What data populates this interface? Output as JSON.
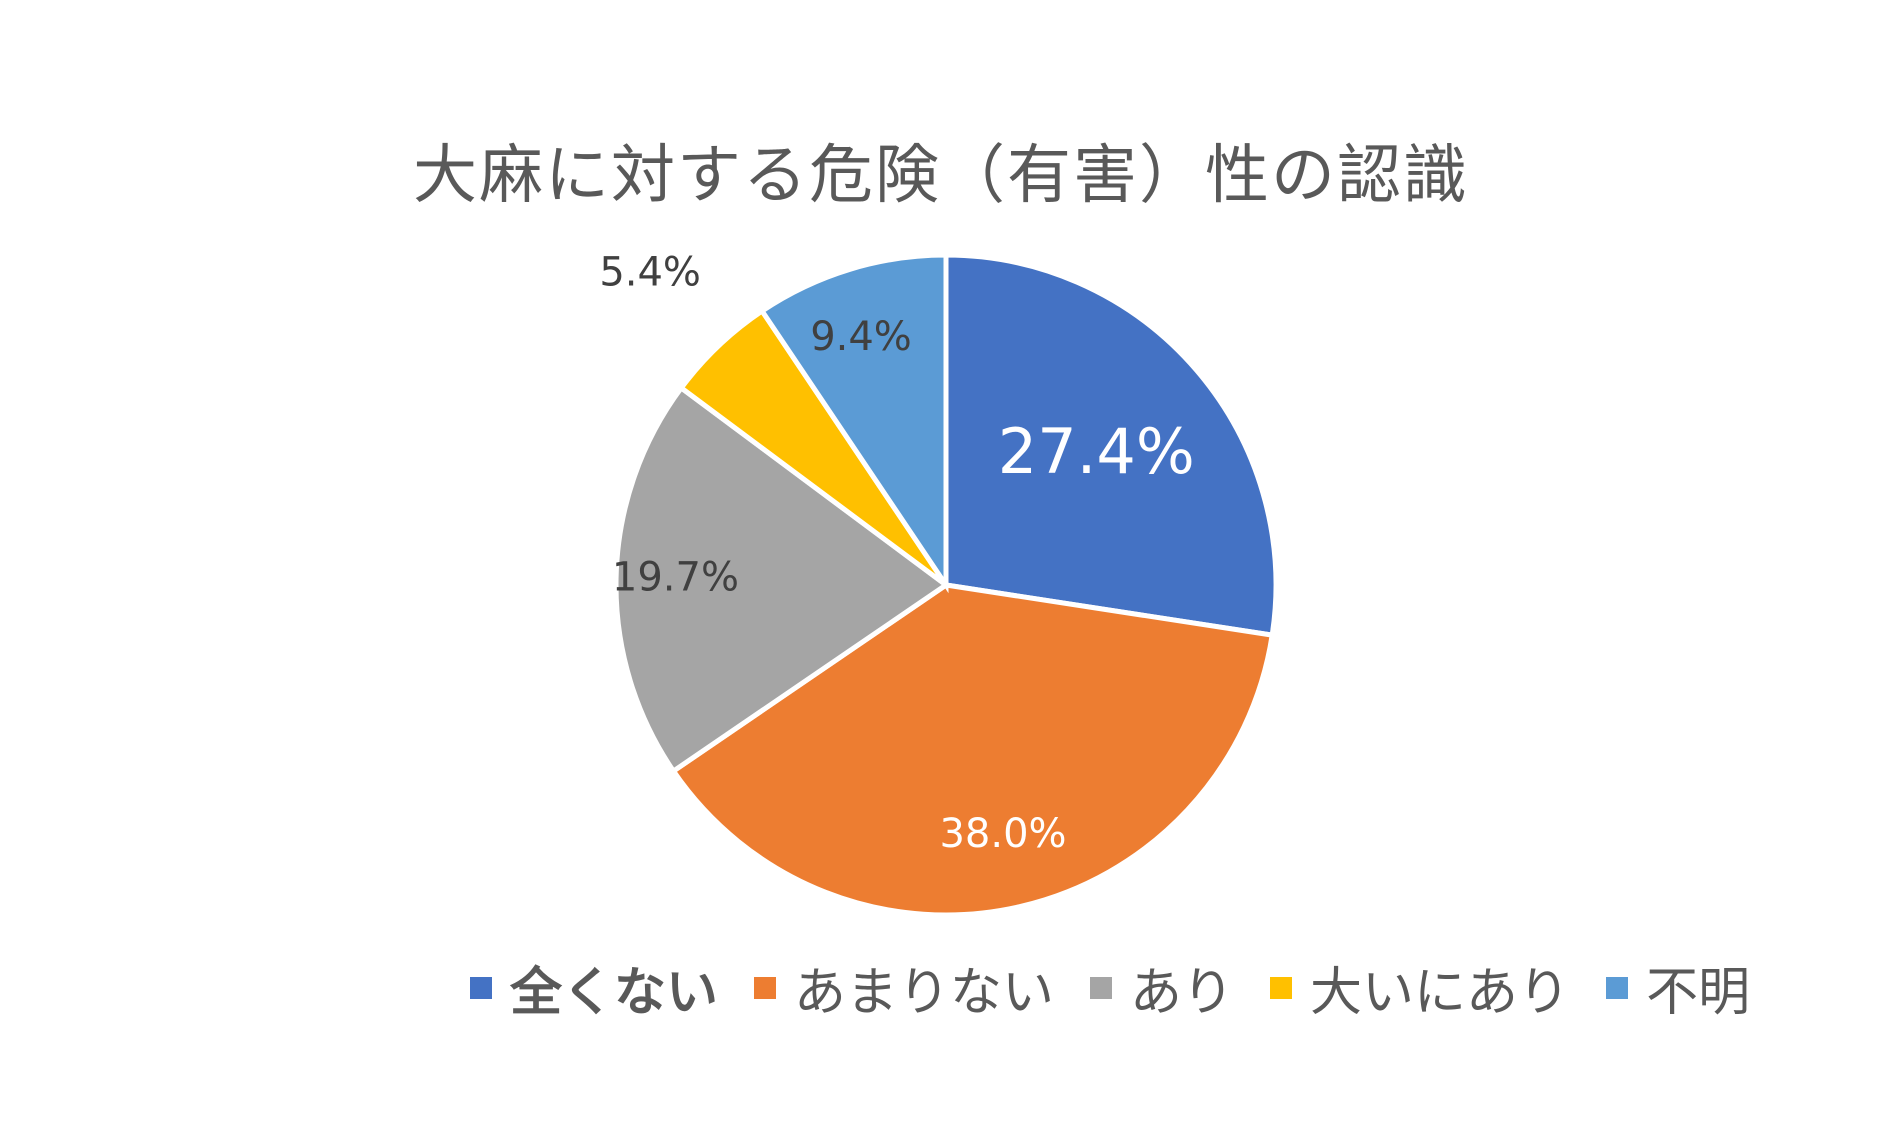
{
  "chart_data": {
    "type": "pie",
    "title": "大麻に対する危険（有害）性の認識",
    "slices": [
      {
        "name": "全くない",
        "value": 27.4,
        "label": "27.4%",
        "color": "#4472C4",
        "label_color": "#ffffff",
        "label_size": "large"
      },
      {
        "name": "あまりない",
        "value": 38.0,
        "label": "38.0%",
        "color": "#ED7D31",
        "label_color": "#ffffff",
        "label_size": "normal"
      },
      {
        "name": "あり",
        "value": 19.7,
        "label": "19.7%",
        "color": "#A5A5A5",
        "label_color": "#404040",
        "label_size": "normal"
      },
      {
        "name": "大いにあり",
        "value": 5.4,
        "label": "5.4%",
        "color": "#FFC000",
        "label_color": "#404040",
        "label_size": "normal"
      },
      {
        "name": "不明",
        "value": 9.4,
        "label": "9.4%",
        "color": "#5B9BD5",
        "label_color": "#404040",
        "label_size": "normal"
      }
    ],
    "start_angle": "12 o'clock",
    "direction": "clockwise",
    "legend_position": "bottom",
    "legend_bold_item": "全くない"
  }
}
